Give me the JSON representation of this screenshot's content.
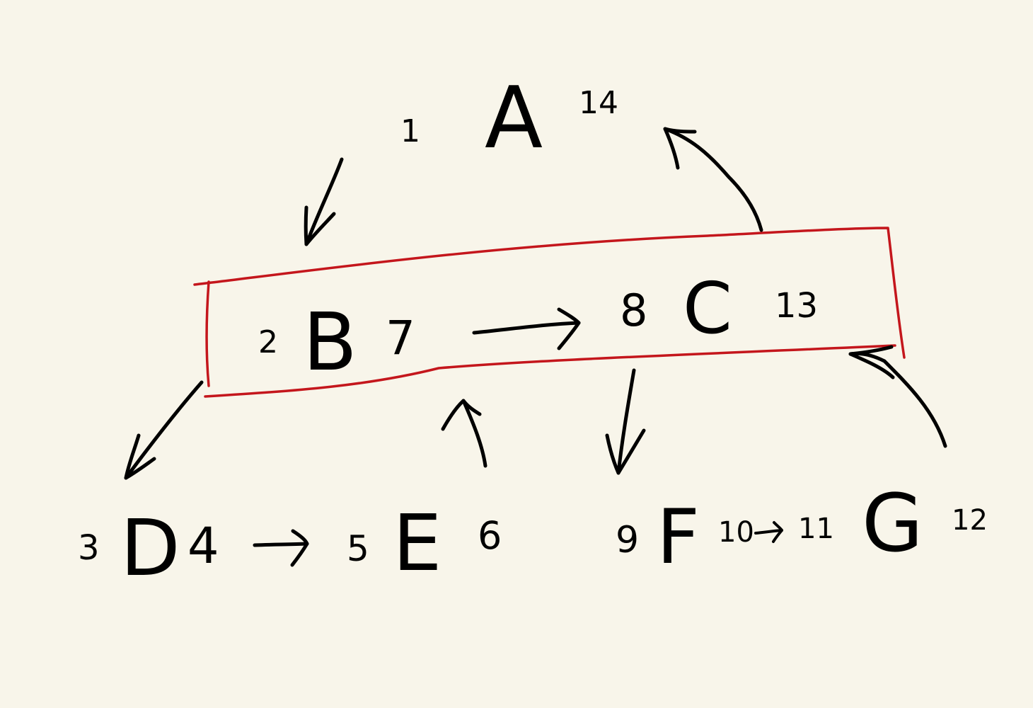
{
  "colors": {
    "background": "#f8f5ea",
    "ink": "#000000",
    "highlight": "#c4161c"
  },
  "nodes": {
    "A": {
      "label": "A",
      "pre": "1",
      "post": "14"
    },
    "B": {
      "label": "B",
      "pre": "2",
      "post": "7"
    },
    "C": {
      "label": "C",
      "pre": "8",
      "post": "13"
    },
    "D": {
      "label": "D",
      "pre": "3",
      "post": "4"
    },
    "E": {
      "label": "E",
      "pre": "5",
      "post": "6"
    },
    "F": {
      "label": "F",
      "pre": "9",
      "post": "10"
    },
    "G": {
      "label": "G",
      "pre": "11",
      "post": "12"
    }
  },
  "edges": [
    {
      "from": "A",
      "to": "B"
    },
    {
      "from": "B",
      "to": "C"
    },
    {
      "from": "C",
      "to": "A"
    },
    {
      "from": "B",
      "to": "D"
    },
    {
      "from": "D",
      "to": "E"
    },
    {
      "from": "E",
      "to": "B"
    },
    {
      "from": "C",
      "to": "F"
    },
    {
      "from": "F",
      "to": "G"
    },
    {
      "from": "G",
      "to": "C"
    }
  ]
}
